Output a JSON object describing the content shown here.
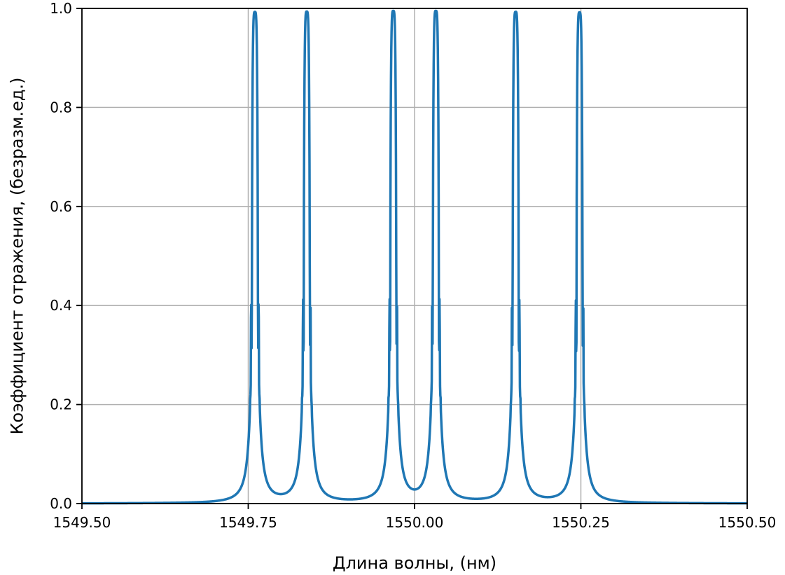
{
  "chart_data": {
    "type": "line",
    "title": "",
    "xlabel": "Длина волны, (нм)",
    "ylabel": "Коэффициент отражения, (безразм.ед.)",
    "xlim": [
      1549.5,
      1550.5
    ],
    "ylim": [
      0.0,
      1.0
    ],
    "xticks": [
      1549.5,
      1549.75,
      1550.0,
      1550.25,
      1550.5
    ],
    "xtick_labels": [
      "1549.50",
      "1549.75",
      "1550.00",
      "1550.25",
      "1550.50"
    ],
    "yticks": [
      0.0,
      0.2,
      0.4,
      0.6,
      0.8,
      1.0
    ],
    "ytick_labels": [
      "0.0",
      "0.2",
      "0.4",
      "0.6",
      "0.8",
      "1.0"
    ],
    "grid": true,
    "line_color": "#1f77b4",
    "grid_color": "#b0b0b0",
    "series": [
      {
        "peaks": [
          {
            "center": 1549.76,
            "value": 0.99
          },
          {
            "center": 1549.838,
            "value": 0.99
          },
          {
            "center": 1549.968,
            "value": 0.99
          },
          {
            "center": 1550.032,
            "value": 0.99
          },
          {
            "center": 1550.152,
            "value": 0.99
          },
          {
            "center": 1550.248,
            "value": 0.99
          }
        ],
        "peak_halfwidth": 0.0048,
        "sidelobe_levels": [
          0.28,
          0.12,
          0.065,
          0.045,
          0.035,
          0.028
        ],
        "valley_min": 0.012
      }
    ]
  }
}
